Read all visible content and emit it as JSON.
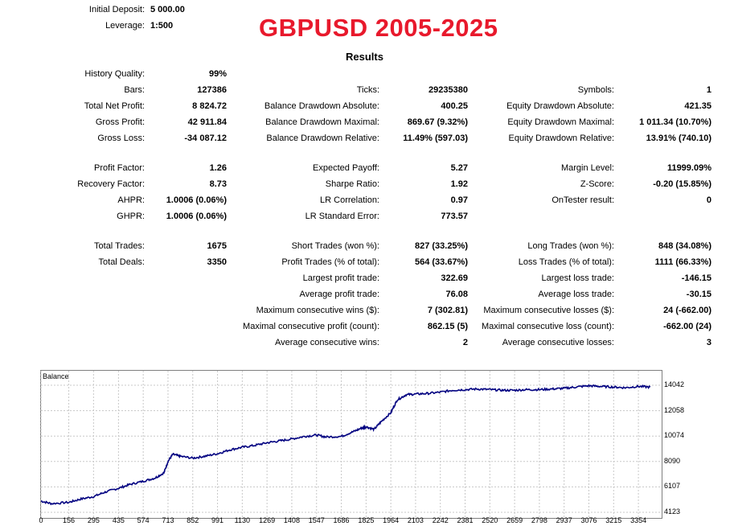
{
  "header": {
    "initial_deposit_label": "Initial Deposit:",
    "initial_deposit_value": "5 000.00",
    "leverage_label": "Leverage:",
    "leverage_value": "1:500",
    "title": "GBPUSD 2005-2025",
    "results_heading": "Results"
  },
  "col1": [
    {
      "label": "History Quality:",
      "value": "99%"
    },
    {
      "label": "Bars:",
      "value": "127386"
    },
    {
      "label": "Total Net Profit:",
      "value": "8 824.72"
    },
    {
      "label": "Gross Profit:",
      "value": "42 911.84"
    },
    {
      "label": "Gross Loss:",
      "value": "-34 087.12"
    },
    {
      "label": "Profit Factor:",
      "value": "1.26"
    },
    {
      "label": "Recovery Factor:",
      "value": "8.73"
    },
    {
      "label": "AHPR:",
      "value": "1.0006 (0.06%)"
    },
    {
      "label": "GHPR:",
      "value": "1.0006 (0.06%)"
    },
    {
      "label": "Total Trades:",
      "value": "1675"
    },
    {
      "label": "Total Deals:",
      "value": "3350"
    }
  ],
  "col2": [
    {
      "label": "Ticks:",
      "value": "29235380"
    },
    {
      "label": "Balance Drawdown Absolute:",
      "value": "400.25"
    },
    {
      "label": "Balance Drawdown Maximal:",
      "value": "869.67 (9.32%)"
    },
    {
      "label": "Balance Drawdown Relative:",
      "value": "11.49% (597.03)"
    },
    {
      "label": "Expected Payoff:",
      "value": "5.27"
    },
    {
      "label": "Sharpe Ratio:",
      "value": "1.92"
    },
    {
      "label": "LR Correlation:",
      "value": "0.97"
    },
    {
      "label": "LR Standard Error:",
      "value": "773.57"
    },
    {
      "label": "Short Trades (won %):",
      "value": "827 (33.25%)"
    },
    {
      "label": "Profit Trades (% of total):",
      "value": "564 (33.67%)"
    },
    {
      "label": "Largest profit trade:",
      "value": "322.69"
    },
    {
      "label": "Average profit trade:",
      "value": "76.08"
    },
    {
      "label": "Maximum consecutive wins ($):",
      "value": "7 (302.81)"
    },
    {
      "label": "Maximal consecutive profit (count):",
      "value": "862.15 (5)"
    },
    {
      "label": "Average consecutive wins:",
      "value": "2"
    }
  ],
  "col3": [
    {
      "label": "Symbols:",
      "value": "1"
    },
    {
      "label": "Equity Drawdown Absolute:",
      "value": "421.35"
    },
    {
      "label": "Equity Drawdown Maximal:",
      "value": "1 011.34 (10.70%)"
    },
    {
      "label": "Equity Drawdown Relative:",
      "value": "13.91% (740.10)"
    },
    {
      "label": "Margin Level:",
      "value": "11999.09%"
    },
    {
      "label": "Z-Score:",
      "value": "-0.20 (15.85%)"
    },
    {
      "label": "OnTester result:",
      "value": "0"
    },
    {
      "label": "Long Trades (won %):",
      "value": "848 (34.08%)"
    },
    {
      "label": "Loss Trades (% of total):",
      "value": "1111 (66.33%)"
    },
    {
      "label": "Largest loss trade:",
      "value": "-146.15"
    },
    {
      "label": "Average loss trade:",
      "value": "-30.15"
    },
    {
      "label": "Maximum consecutive losses ($):",
      "value": "24 (-662.00)"
    },
    {
      "label": "Maximal consecutive loss (count):",
      "value": "-662.00 (24)"
    },
    {
      "label": "Average consecutive losses:",
      "value": "3"
    }
  ],
  "chart_data": {
    "type": "line",
    "title": "Balance",
    "x_ticks": [
      0,
      156,
      295,
      435,
      574,
      713,
      852,
      991,
      1130,
      1269,
      1408,
      1547,
      1686,
      1825,
      1964,
      2103,
      2242,
      2381,
      2520,
      2659,
      2798,
      2937,
      3076,
      3215,
      3354
    ],
    "y_ticks": [
      4123,
      6107,
      8090,
      10074,
      12058,
      14042
    ],
    "xlim": [
      0,
      3480
    ],
    "ylim": [
      4123,
      14042
    ],
    "line_color": "#000080",
    "series": [
      {
        "name": "Balance",
        "x": [
          0,
          60,
          156,
          220,
          295,
          360,
          435,
          500,
          574,
          640,
          690,
          713,
          740,
          780,
          852,
          920,
          991,
          1060,
          1130,
          1200,
          1269,
          1340,
          1408,
          1480,
          1547,
          1600,
          1686,
          1750,
          1800,
          1825,
          1870,
          1910,
          1964,
          2000,
          2050,
          2103,
          2170,
          2242,
          2310,
          2381,
          2450,
          2520,
          2590,
          2659,
          2730,
          2798,
          2870,
          2937,
          3000,
          3076,
          3140,
          3215,
          3280,
          3354,
          3420
        ],
        "y": [
          5000,
          4800,
          4900,
          5150,
          5350,
          5700,
          6000,
          6300,
          6550,
          6800,
          7200,
          8100,
          8650,
          8500,
          8350,
          8500,
          8700,
          9000,
          9200,
          9350,
          9550,
          9700,
          9850,
          10050,
          10150,
          10000,
          10050,
          10400,
          10700,
          10800,
          10600,
          11200,
          11900,
          12900,
          13300,
          13350,
          13400,
          13500,
          13650,
          13700,
          13750,
          13700,
          13650,
          13650,
          13700,
          13700,
          13750,
          13800,
          13900,
          14000,
          13950,
          13900,
          13850,
          13950,
          13900
        ]
      }
    ]
  }
}
